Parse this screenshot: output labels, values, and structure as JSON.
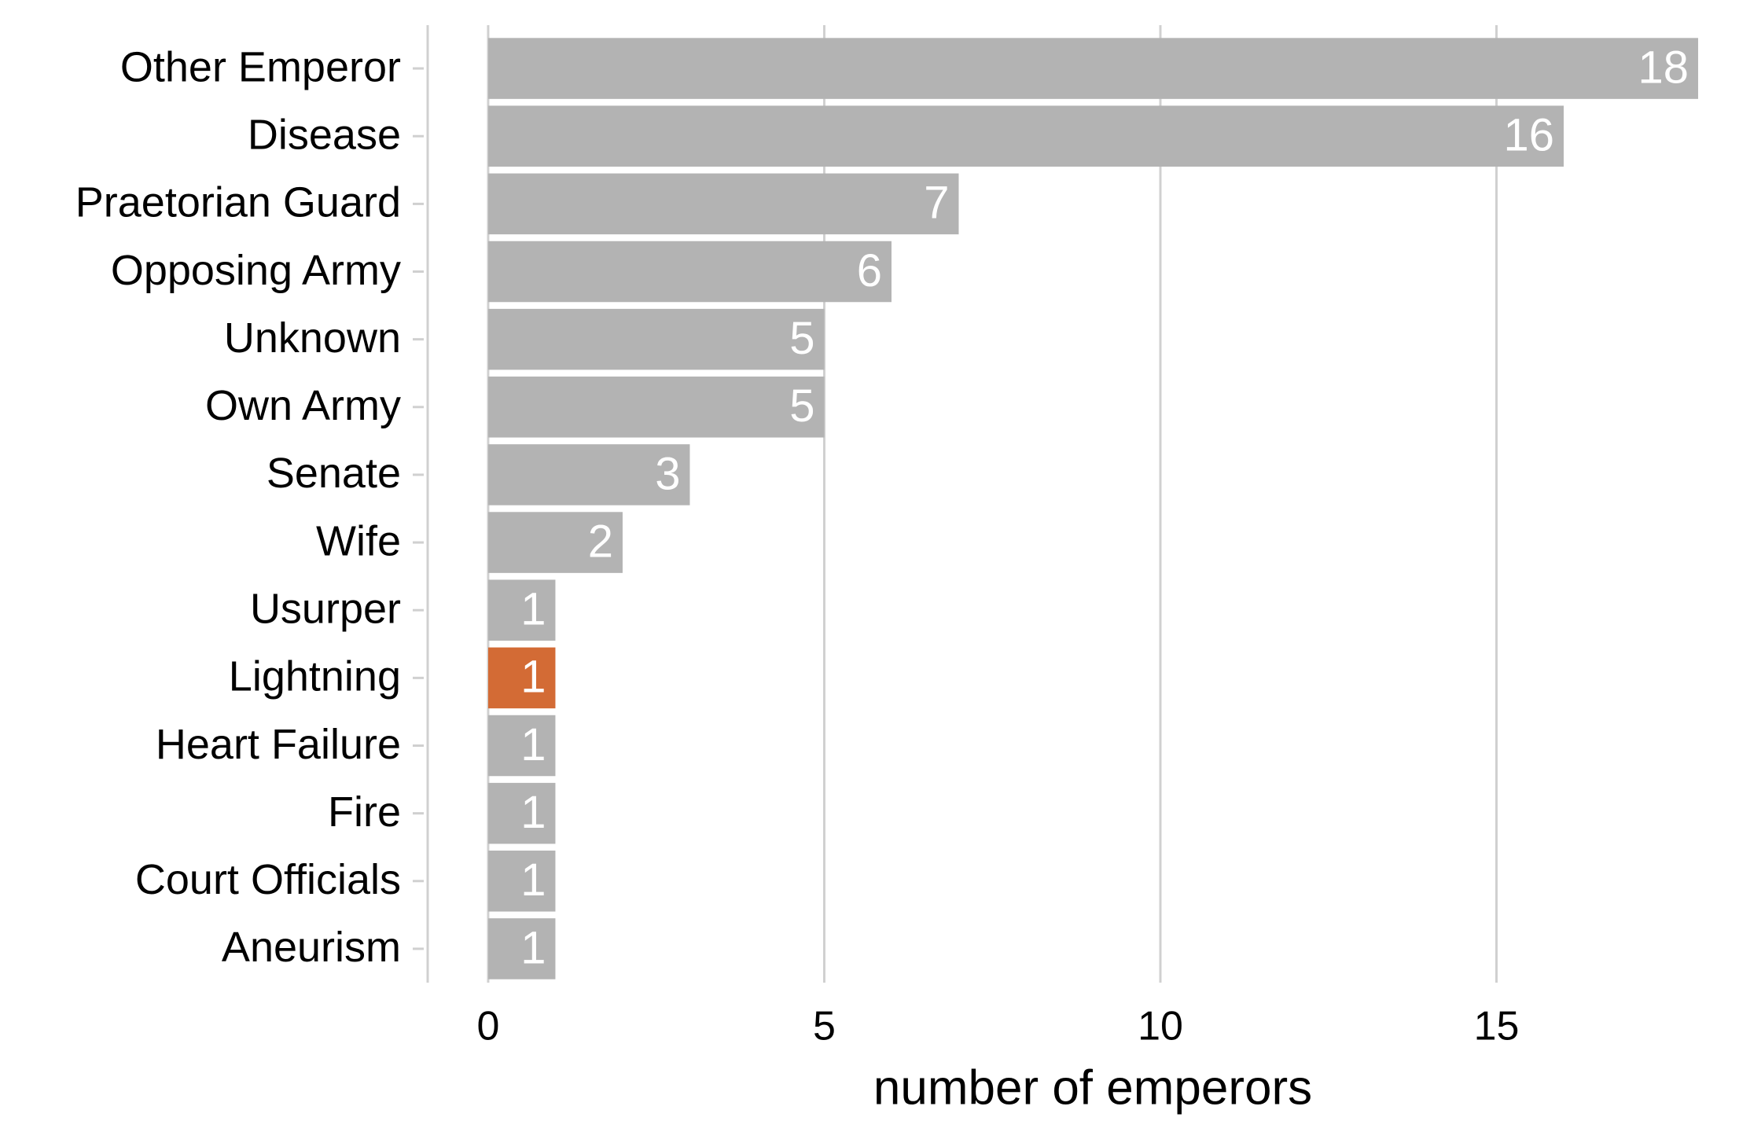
{
  "chart_data": {
    "type": "hbar",
    "x_label": "number of emperors",
    "categories": [
      "Other Emperor",
      "Disease",
      "Praetorian Guard",
      "Opposing Army",
      "Unknown",
      "Own Army",
      "Senate",
      "Wife",
      "Usurper",
      "Lightning",
      "Heart Failure",
      "Fire",
      "Court Officials",
      "Aneurism"
    ],
    "values": [
      18,
      16,
      7,
      6,
      5,
      5,
      3,
      2,
      1,
      1,
      1,
      1,
      1,
      1
    ],
    "colors": [
      "#b3b3b3",
      "#b3b3b3",
      "#b3b3b3",
      "#b3b3b3",
      "#b3b3b3",
      "#b3b3b3",
      "#b3b3b3",
      "#b3b3b3",
      "#b3b3b3",
      "#d36b35",
      "#b3b3b3",
      "#b3b3b3",
      "#b3b3b3",
      "#b3b3b3"
    ],
    "xlim": [
      -0.9,
      18.9
    ],
    "xticks": [
      0,
      5,
      10,
      15
    ],
    "grid": true
  }
}
